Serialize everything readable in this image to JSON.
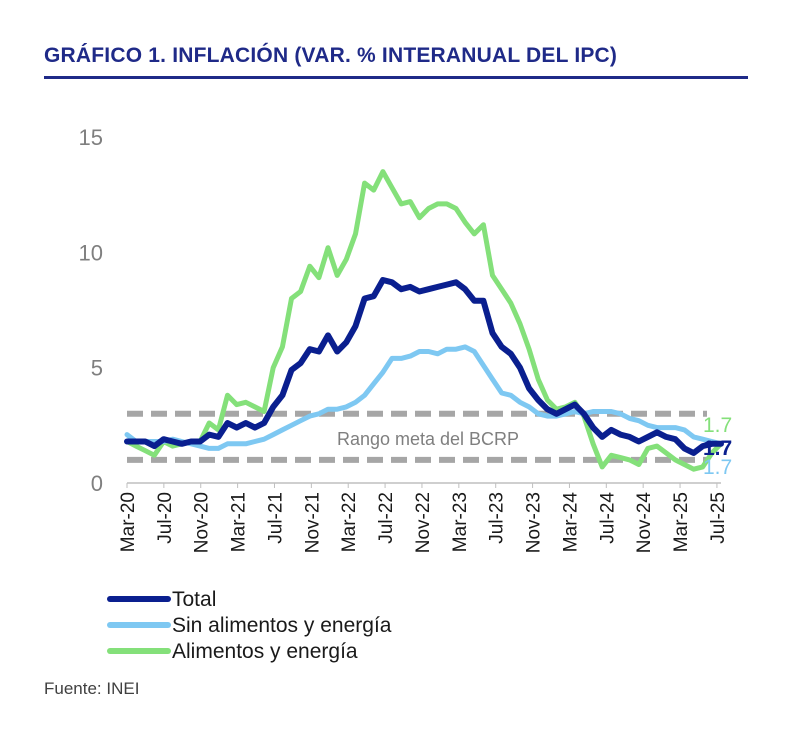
{
  "title": "GRÁFICO 1. INFLACIÓN (VAR. % INTERANUAL DEL IPC)",
  "source": "Fuente: INEI",
  "chart_data": {
    "type": "line",
    "ylim": [
      0,
      15
    ],
    "yticks": [
      "0",
      "5",
      "10",
      "15"
    ],
    "xtick_labels": [
      "Mar-20",
      "Jul-20",
      "Nov-20",
      "Mar-21",
      "Jul-21",
      "Nov-21",
      "Mar-22",
      "Jul-22",
      "Nov-22",
      "Mar-23",
      "Jul-23",
      "Nov-23",
      "Mar-24",
      "Jul-24",
      "Nov-24",
      "Mar-25",
      "Jul-25"
    ],
    "grid": false,
    "legend_position": "bottom-left",
    "target_band": {
      "label": "Rango meta del BCRP",
      "low": 1,
      "high": 3,
      "color": "#a6a6a6"
    },
    "series": [
      {
        "name": "Total",
        "color": "#0a1f8f",
        "end_label": "1.7",
        "values": [
          1.8,
          1.8,
          1.8,
          1.6,
          1.9,
          1.8,
          1.7,
          1.8,
          1.8,
          2.1,
          2.0,
          2.6,
          2.4,
          2.6,
          2.4,
          2.6,
          3.3,
          3.8,
          4.9,
          5.2,
          5.8,
          5.7,
          6.4,
          5.7,
          6.1,
          6.8,
          8.0,
          8.1,
          8.8,
          8.7,
          8.4,
          8.5,
          8.3,
          8.4,
          8.5,
          8.6,
          8.7,
          8.4,
          7.9,
          7.9,
          6.5,
          5.9,
          5.6,
          5.0,
          4.1,
          3.6,
          3.2,
          3.0,
          3.2,
          3.4,
          3.0,
          2.4,
          2.0,
          2.3,
          2.1,
          2.0,
          1.8,
          2.0,
          2.2,
          2.0,
          1.9,
          1.5,
          1.3,
          1.6,
          1.7,
          1.7
        ]
      },
      {
        "name": "Sin alimentos y energía",
        "color": "#7ec8f2",
        "end_label": "1.7",
        "values": [
          2.1,
          1.8,
          1.8,
          1.8,
          1.8,
          1.9,
          1.8,
          1.7,
          1.6,
          1.5,
          1.5,
          1.7,
          1.7,
          1.7,
          1.8,
          1.9,
          2.1,
          2.3,
          2.5,
          2.7,
          2.9,
          3.0,
          3.2,
          3.2,
          3.3,
          3.5,
          3.8,
          4.3,
          4.8,
          5.4,
          5.4,
          5.5,
          5.7,
          5.7,
          5.6,
          5.8,
          5.8,
          5.9,
          5.7,
          5.1,
          4.5,
          3.9,
          3.8,
          3.5,
          3.3,
          3.0,
          2.9,
          2.9,
          3.0,
          3.1,
          3.0,
          3.1,
          3.1,
          3.1,
          3.0,
          2.8,
          2.7,
          2.5,
          2.4,
          2.4,
          2.4,
          2.3,
          2.0,
          1.9,
          1.8,
          1.7
        ]
      },
      {
        "name": "Alimentos y energía",
        "color": "#84e07a",
        "end_label": "1.7",
        "values": [
          1.8,
          1.6,
          1.4,
          1.2,
          1.8,
          1.6,
          1.7,
          1.8,
          1.8,
          2.6,
          2.3,
          3.8,
          3.4,
          3.5,
          3.3,
          3.1,
          5.0,
          5.9,
          8.0,
          8.3,
          9.4,
          8.9,
          10.2,
          9.0,
          9.7,
          10.8,
          13.0,
          12.7,
          13.5,
          12.8,
          12.1,
          12.2,
          11.5,
          11.9,
          12.1,
          12.1,
          11.9,
          11.3,
          10.8,
          11.2,
          9.0,
          8.4,
          7.8,
          6.9,
          5.8,
          4.5,
          3.6,
          3.2,
          3.3,
          3.5,
          2.9,
          1.7,
          0.7,
          1.2,
          1.1,
          1.0,
          0.8,
          1.5,
          1.6,
          1.3,
          1.0,
          0.8,
          0.6,
          0.7,
          1.3,
          1.7
        ]
      }
    ]
  }
}
